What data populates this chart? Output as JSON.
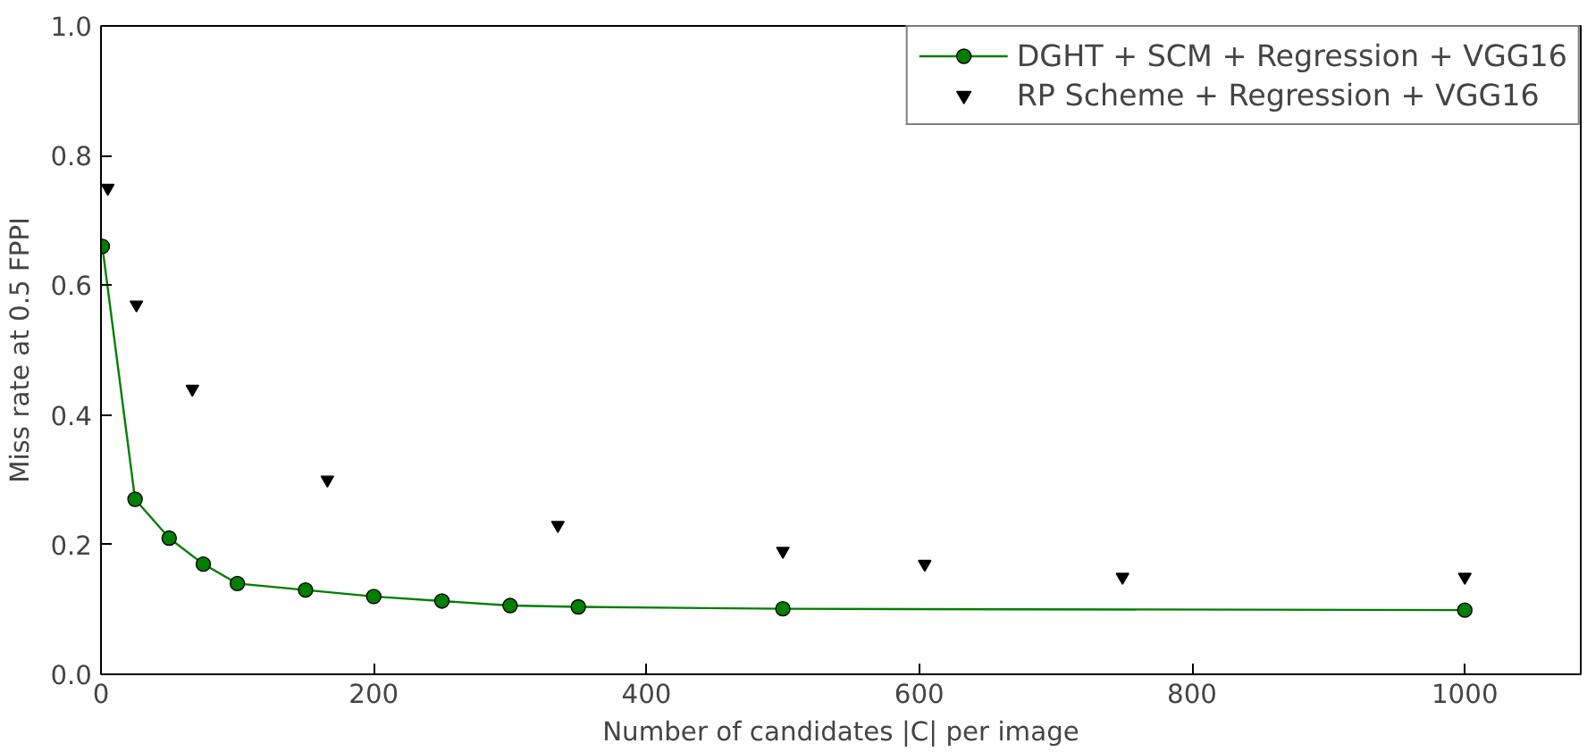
{
  "chart_data": {
    "type": "line",
    "xlabel": "Number of candidates |C| per image",
    "ylabel": "Miss rate at 0.5 FPPI",
    "xlim": [
      0,
      1085
    ],
    "xticks": [
      0,
      200,
      400,
      600,
      800,
      1000
    ],
    "ylim": [
      0,
      1.0
    ],
    "yticks": [
      {
        "value": 0,
        "label": "0.0"
      },
      0.2,
      0.4,
      0.6,
      0.8,
      {
        "value": 1,
        "label": "1.0"
      }
    ],
    "grid": false,
    "legend": "top right",
    "series": [
      {
        "name": "DGHT + SCM + Regression + VGG16",
        "marker": "circle",
        "color": "#007f00",
        "x": [
          1,
          25,
          50,
          75,
          100,
          150,
          200,
          250,
          300,
          350,
          500,
          1000
        ],
        "values": [
          0.66,
          0.27,
          0.21,
          0.17,
          0.14,
          0.13,
          0.12,
          0.113,
          0.106,
          0.104,
          0.101,
          0.099
        ]
      },
      {
        "name": "RP Scheme + Regression + VGG16",
        "type": "scatter",
        "marker": "triangle",
        "color": "#000000",
        "x": [
          5,
          26,
          67,
          166,
          335,
          500,
          604,
          749,
          1000
        ],
        "values": [
          0.75,
          0.57,
          0.44,
          0.3,
          0.23,
          0.19,
          0.17,
          0.15,
          0.15
        ]
      }
    ]
  }
}
